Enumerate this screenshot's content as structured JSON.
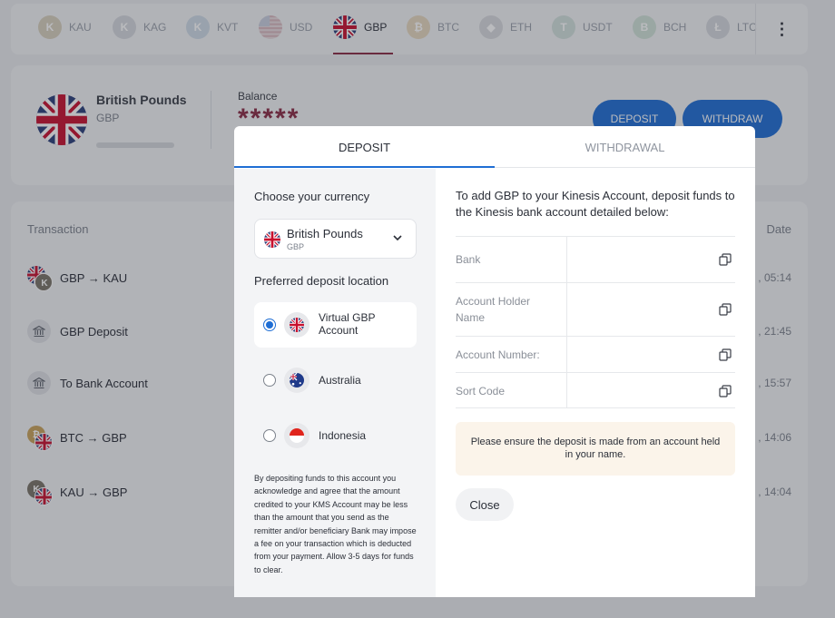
{
  "currency_tabs": [
    {
      "code": "KAU",
      "color": "#d8d0bd",
      "glyph": "K"
    },
    {
      "code": "KAG",
      "color": "#d5d8dd",
      "glyph": "K"
    },
    {
      "code": "KVT",
      "color": "#cfdbe6",
      "glyph": "K"
    },
    {
      "code": "USD",
      "color": "#d9cfd2",
      "glyph": ""
    },
    {
      "code": "GBP",
      "color": "#2a3f7a",
      "glyph": ""
    },
    {
      "code": "BTC",
      "color": "#e6d7bf",
      "glyph": "₿"
    },
    {
      "code": "ETH",
      "color": "#d7d9dd",
      "glyph": "◆"
    },
    {
      "code": "USDT",
      "color": "#d2e0dc",
      "glyph": "T"
    },
    {
      "code": "BCH",
      "color": "#d0e2d8",
      "glyph": "B"
    },
    {
      "code": "LTC",
      "color": "#d5d8dd",
      "glyph": "Ł"
    }
  ],
  "active_tab": "GBP",
  "balance_card": {
    "currency_name": "British Pounds",
    "currency_code": "GBP",
    "balance_label": "Balance",
    "balance_value": "*****",
    "deposit_label": "DEPOSIT",
    "withdraw_label": "WITHDRAW"
  },
  "transactions": {
    "header_left": "Transaction",
    "header_right": "Date",
    "rows": [
      {
        "label": "GBP → KAU",
        "time": ", 05:14",
        "icon": "swap"
      },
      {
        "label": "GBP Deposit",
        "time": ", 21:45",
        "icon": "bank"
      },
      {
        "label": "To Bank Account",
        "time": ", 15:57",
        "icon": "bank"
      },
      {
        "label": "BTC → GBP",
        "time": ", 14:06",
        "icon": "swap"
      },
      {
        "label": "KAU → GBP",
        "time": ", 14:04",
        "icon": "swap"
      }
    ]
  },
  "modal": {
    "tabs": {
      "deposit": "DEPOSIT",
      "withdrawal": "WITHDRAWAL"
    },
    "choose_currency_label": "Choose your currency",
    "selected_currency": {
      "name": "British Pounds",
      "code": "GBP"
    },
    "deposit_location_label": "Preferred deposit location",
    "locations": [
      {
        "name": "Virtual GBP Account",
        "selected": true
      },
      {
        "name": "Australia",
        "selected": false
      },
      {
        "name": "Indonesia",
        "selected": false
      }
    ],
    "disclaimer": "By depositing funds to this account you acknowledge and agree that the amount credited to your KMS Account may be less than the amount that you send as the remitter and/or beneficiary Bank may impose a fee on your transaction which is deducted from your payment. Allow 3-5 days for funds to clear.",
    "intro": "To add GBP to your Kinesis Account, deposit funds to the Kinesis bank account detailed below:",
    "fields": [
      {
        "label": "Bank"
      },
      {
        "label": "Account Holder Name"
      },
      {
        "label": "Account Number:"
      },
      {
        "label": "Sort Code"
      }
    ],
    "notice": "Please ensure the deposit is made from an account held in your name.",
    "close_label": "Close"
  },
  "colors": {
    "accent_blue": "#1f6ed4",
    "brand_maroon": "#8a2b45",
    "notice_bg": "#fbf4ea"
  }
}
